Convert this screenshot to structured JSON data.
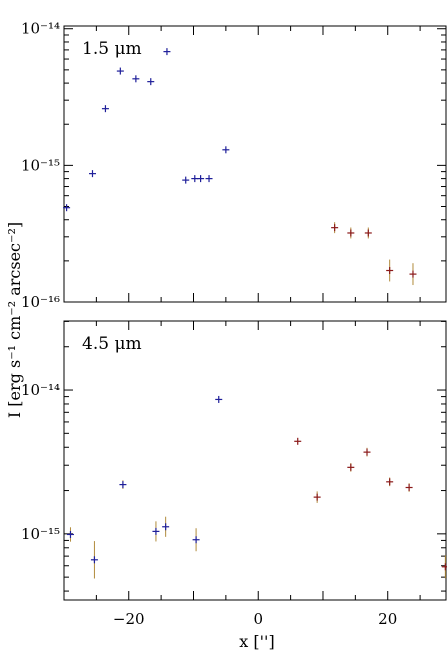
{
  "chart_data": {
    "type": "scatter",
    "xlabel": "x ['']",
    "ylabel": "I [erg s⁻¹ cm⁻² arcsec⁻²]",
    "xlim": [
      -30,
      29
    ],
    "x_ticks": [
      -20,
      0,
      20
    ],
    "colors": {
      "blue": "#1f1f9a",
      "red": "#8b1a1a",
      "error": "#b08a3a"
    },
    "panels": [
      {
        "label": "1.5 μm",
        "ylim_log10": [
          -16,
          -13.98
        ],
        "y_ticks": [
          {
            "log10": -14,
            "label": "10⁻¹⁴"
          },
          {
            "log10": -15,
            "label": "10⁻¹⁵"
          },
          {
            "log10": -16,
            "label": "10⁻¹⁶"
          }
        ],
        "series": [
          {
            "color": "blue",
            "points": [
              {
                "x": -29.6,
                "y": 4.9e-16
              },
              {
                "x": -25.6,
                "y": 8.7e-16
              },
              {
                "x": -23.6,
                "y": 2.6e-15
              },
              {
                "x": -21.3,
                "y": 4.9e-15
              },
              {
                "x": -18.9,
                "y": 4.3e-15
              },
              {
                "x": -16.6,
                "y": 4.1e-15
              },
              {
                "x": -14.1,
                "y": 6.8e-15
              },
              {
                "x": -11.2,
                "y": 7.8e-16
              },
              {
                "x": -9.8,
                "y": 8e-16
              },
              {
                "x": -8.9,
                "y": 8e-16
              },
              {
                "x": -7.6,
                "y": 8e-16
              },
              {
                "x": -5.0,
                "y": 1.3e-15
              }
            ]
          },
          {
            "color": "red",
            "points": [
              {
                "x": 11.8,
                "y": 3.5e-16,
                "err": 0.04
              },
              {
                "x": 14.3,
                "y": 3.2e-16,
                "err": 0.04
              },
              {
                "x": 17.0,
                "y": 3.2e-16,
                "err": 0.04
              },
              {
                "x": 20.3,
                "y": 1.7e-16,
                "err": 0.08
              },
              {
                "x": 23.9,
                "y": 1.6e-16,
                "err": 0.08
              }
            ]
          }
        ]
      },
      {
        "label": "4.5 μm",
        "ylim_log10": [
          -15.46,
          -13.52
        ],
        "y_ticks": [
          {
            "log10": -14,
            "label": "10⁻¹⁴"
          },
          {
            "log10": -15,
            "label": "10⁻¹⁵"
          }
        ],
        "series": [
          {
            "color": "blue",
            "points": [
              {
                "x": -29.0,
                "y": 9.9e-16,
                "err": 0.05
              },
              {
                "x": -25.3,
                "y": 6.6e-16,
                "err": 0.13
              },
              {
                "x": -20.9,
                "y": 2.2e-15,
                "err": 0.03
              },
              {
                "x": -15.8,
                "y": 1.04e-15,
                "err": 0.07
              },
              {
                "x": -14.3,
                "y": 1.12e-15,
                "err": 0.07
              },
              {
                "x": -9.6,
                "y": 9.1e-16,
                "err": 0.08
              },
              {
                "x": -6.1,
                "y": 8.6e-15
              }
            ]
          },
          {
            "color": "red",
            "points": [
              {
                "x": 6.1,
                "y": 4.4e-15
              },
              {
                "x": 9.1,
                "y": 1.8e-15,
                "err": 0.04
              },
              {
                "x": 14.3,
                "y": 2.9e-15,
                "err": 0.03
              },
              {
                "x": 16.8,
                "y": 3.7e-15,
                "err": 0.03
              },
              {
                "x": 20.3,
                "y": 2.3e-15,
                "err": 0.03
              },
              {
                "x": 23.3,
                "y": 2.1e-15,
                "err": 0.03
              },
              {
                "x": 28.9,
                "y": 5.9e-16,
                "err": 0.08
              }
            ]
          }
        ]
      }
    ]
  }
}
